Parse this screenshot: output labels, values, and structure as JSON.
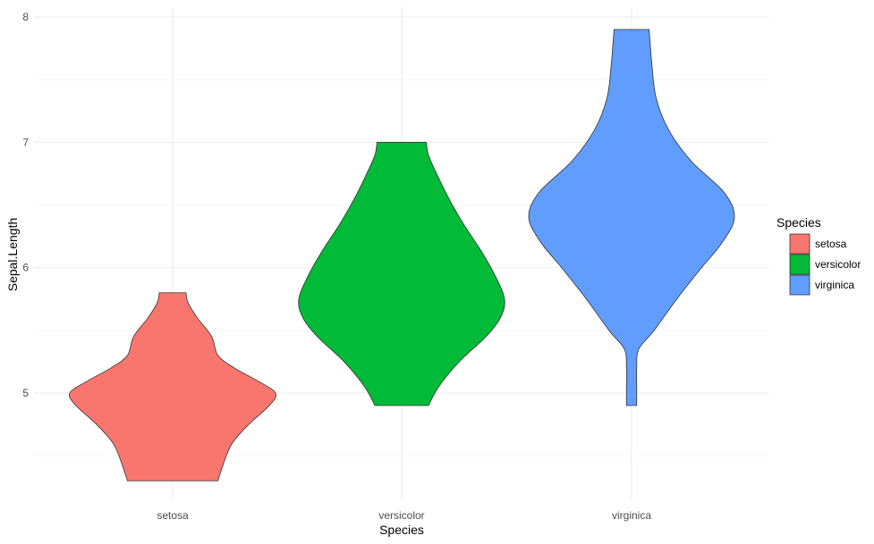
{
  "chart_data": {
    "type": "violin",
    "xlabel": "Species",
    "ylabel": "Sepal.Length",
    "ylim": [
      4.2,
      8.08
    ],
    "y_ticks": [
      5,
      6,
      7,
      8
    ],
    "grid": true,
    "legend": {
      "title": "Species",
      "placement": "right",
      "entries": [
        "setosa",
        "versicolor",
        "virginica"
      ]
    },
    "categories": [
      "setosa",
      "versicolor",
      "virginica"
    ],
    "series": [
      {
        "name": "setosa",
        "color": "#F8766D",
        "min": 4.3,
        "max": 5.8,
        "profile": [
          [
            4.3,
            0.44
          ],
          [
            4.45,
            0.5
          ],
          [
            4.6,
            0.58
          ],
          [
            4.75,
            0.74
          ],
          [
            4.9,
            0.94
          ],
          [
            5.0,
            1.0
          ],
          [
            5.1,
            0.82
          ],
          [
            5.2,
            0.6
          ],
          [
            5.3,
            0.44
          ],
          [
            5.45,
            0.38
          ],
          [
            5.6,
            0.24
          ],
          [
            5.72,
            0.15
          ],
          [
            5.8,
            0.13
          ]
        ]
      },
      {
        "name": "versicolor",
        "color": "#00BA38",
        "min": 4.9,
        "max": 7.0,
        "profile": [
          [
            4.9,
            0.26
          ],
          [
            5.05,
            0.36
          ],
          [
            5.25,
            0.56
          ],
          [
            5.45,
            0.82
          ],
          [
            5.6,
            0.96
          ],
          [
            5.75,
            1.0
          ],
          [
            5.95,
            0.9
          ],
          [
            6.15,
            0.76
          ],
          [
            6.35,
            0.6
          ],
          [
            6.55,
            0.46
          ],
          [
            6.75,
            0.34
          ],
          [
            6.9,
            0.26
          ],
          [
            7.0,
            0.24
          ]
        ]
      },
      {
        "name": "virginica",
        "color": "#619CFF",
        "min": 4.9,
        "max": 7.9,
        "profile": [
          [
            4.9,
            0.05
          ],
          [
            5.05,
            0.05
          ],
          [
            5.2,
            0.05
          ],
          [
            5.35,
            0.07
          ],
          [
            5.5,
            0.22
          ],
          [
            5.75,
            0.44
          ],
          [
            6.0,
            0.68
          ],
          [
            6.2,
            0.88
          ],
          [
            6.4,
            1.0
          ],
          [
            6.6,
            0.9
          ],
          [
            6.85,
            0.58
          ],
          [
            7.1,
            0.36
          ],
          [
            7.35,
            0.24
          ],
          [
            7.6,
            0.2
          ],
          [
            7.8,
            0.18
          ],
          [
            7.9,
            0.17
          ]
        ]
      }
    ]
  }
}
